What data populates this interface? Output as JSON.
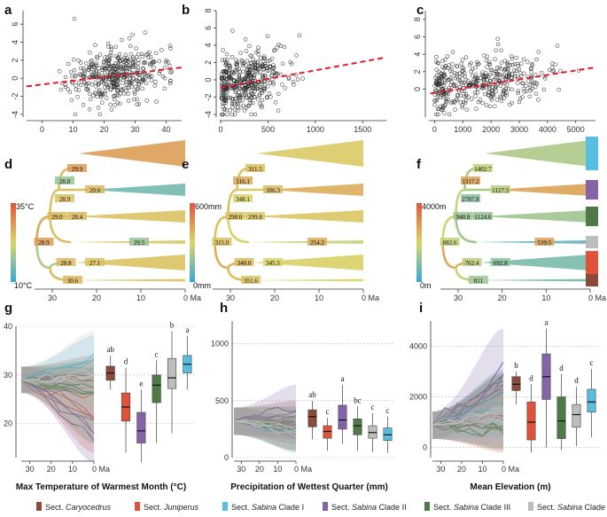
{
  "colors": {
    "Caryocedrus": "#8b4a3a",
    "Juniperus": "#e0533a",
    "SabinaI": "#56bfe0",
    "SabinaII": "#8463a8",
    "SabinaIII": "#4e7a48",
    "SabinaIV": "#bdbdbd",
    "trend": "#e8182a",
    "heat_low": "#3aa6d6",
    "heat_mid": "#d9d76a",
    "heat_high": "#e0553a"
  },
  "legend": [
    {
      "prefix": "Sect.",
      "italic": "Caryocedrus",
      "suffix": "",
      "color_key": "Caryocedrus"
    },
    {
      "prefix": "Sect.",
      "italic": "Juniperus",
      "suffix": "",
      "color_key": "Juniperus"
    },
    {
      "prefix": "Sect.",
      "italic": "Sabina",
      "suffix": "Clade I",
      "color_key": "SabinaI"
    },
    {
      "prefix": "Sect.",
      "italic": "Sabina",
      "suffix": "Clade II",
      "color_key": "SabinaII"
    },
    {
      "prefix": "Sect.",
      "italic": "Sabina",
      "suffix": "Clade III",
      "color_key": "SabinaIII"
    },
    {
      "prefix": "Sect.",
      "italic": "Sabina",
      "suffix": "Clade IV",
      "color_key": "SabinaIV"
    }
  ],
  "chart_data": [
    {
      "id": "a",
      "label": "a",
      "type": "scatter",
      "xlim": [
        -5,
        45
      ],
      "ylim": [
        -4.3,
        7.5
      ],
      "xticks": [
        "0",
        "10",
        "20",
        "30",
        "40"
      ],
      "xtick_values": [
        0,
        10,
        20,
        30,
        40
      ],
      "yticks": [
        "-4",
        "-2",
        "0",
        "2",
        "4",
        "6"
      ],
      "ytick_values": [
        -4,
        -2,
        0,
        2,
        4,
        6
      ],
      "trend": {
        "x0": -5,
        "y0": -0.9,
        "x1": 45,
        "y1": 1.2
      },
      "seed": 11,
      "n": 420,
      "xdist": {
        "mean": 24,
        "sd": 8,
        "min": -3,
        "max": 42
      },
      "yslope": 0.04,
      "yint": -0.6,
      "ysd": 1.4
    },
    {
      "id": "b",
      "label": "b",
      "type": "scatter",
      "xlim": [
        -10,
        1750
      ],
      "ylim": [
        -4.3,
        8.0
      ],
      "xticks": [
        "0",
        "500",
        "1000",
        "1500"
      ],
      "xtick_values": [
        0,
        500,
        1000,
        1500
      ],
      "yticks": [
        "-4",
        "-2",
        "0",
        "2",
        "4",
        "6",
        "8"
      ],
      "ytick_values": [
        -4,
        -2,
        0,
        2,
        4,
        6,
        8
      ],
      "trend": {
        "x0": 0,
        "y0": -0.9,
        "x1": 1750,
        "y1": 2.6
      },
      "seed": 23,
      "n": 420,
      "xdist": {
        "mean": 260,
        "sd": 220,
        "min": 5,
        "max": 1550
      },
      "yslope": 0.0018,
      "yint": -0.6,
      "ysd": 1.5
    },
    {
      "id": "c",
      "label": "c",
      "type": "scatter",
      "xlim": [
        -200,
        5700
      ],
      "ylim": [
        -3.2,
        9.0
      ],
      "xticks": [
        "0",
        "1000",
        "2000",
        "3000",
        "4000",
        "5000"
      ],
      "xtick_values": [
        0,
        1000,
        2000,
        3000,
        4000,
        5000
      ],
      "yticks": [
        "0",
        "2",
        "4",
        "6",
        "8"
      ],
      "ytick_values": [
        0,
        2,
        4,
        6,
        8
      ],
      "trend": {
        "x0": -150,
        "y0": -0.5,
        "x1": 5700,
        "y1": 2.5
      },
      "seed": 37,
      "n": 420,
      "xdist": {
        "mean": 1500,
        "sd": 1300,
        "min": 0,
        "max": 5400
      },
      "yslope": 0.0004,
      "yint": 0.0,
      "ysd": 1.4
    }
  ],
  "trees": [
    {
      "id": "d",
      "label": "d",
      "scale_top": "35°C",
      "scale_bottom": "10°C",
      "axis_ticks": [
        "30",
        "20",
        "10",
        "0 Ma"
      ],
      "node_values": [
        "29.9",
        "28.8",
        "20.6",
        "28.9",
        "29.0",
        "28.4",
        "28.9",
        "29.5",
        "28.8",
        "27.1",
        "30.6"
      ],
      "tips": [
        0.72,
        0.18,
        0.58,
        0.55,
        0.58,
        0.58
      ],
      "show_bars": false
    },
    {
      "id": "e",
      "label": "e",
      "scale_top": "600mm",
      "scale_bottom": "0mm",
      "axis_ticks": [
        "30",
        "20",
        "10",
        "0 Ma"
      ],
      "node_values": [
        "311.5",
        "316.1",
        "306.3",
        "348.1",
        "298.0",
        "299.8",
        "315.0",
        "254.2",
        "340.0",
        "345.5",
        "351.6"
      ],
      "tips": [
        0.55,
        0.66,
        0.57,
        0.45,
        0.53,
        0.5
      ],
      "show_bars": false
    },
    {
      "id": "f",
      "label": "f",
      "scale_top": "4000m",
      "scale_bottom": "0m",
      "axis_ticks": [
        "30",
        "20",
        "10",
        "0 Ma"
      ],
      "node_values": [
        "1402.7",
        "1317.2",
        "1127.5",
        "2787.8",
        "948.8",
        "1124.6",
        "882.6",
        "539.5",
        "762.4",
        "692.8",
        "811"
      ],
      "tips": [
        0.36,
        0.7,
        0.32,
        0.13,
        0.2,
        0.18
      ],
      "show_bars": true
    }
  ],
  "trait_panels": [
    {
      "id": "g",
      "label": "g",
      "xlabel": "Max Temperature of Warmest Month (°C)",
      "ylim": [
        13,
        40
      ],
      "yticks": [
        "20",
        "30",
        "40"
      ],
      "ytick_values": [
        20,
        30,
        40
      ],
      "time_ticks": [
        "30",
        "20",
        "10",
        "0 Ma"
      ],
      "root": 29,
      "boxes": [
        {
          "clade": "Caryocedrus",
          "sig": "ab",
          "min": 27,
          "q1": 28.9,
          "med": 30.4,
          "q3": 31.8,
          "max": 34
        },
        {
          "clade": "Juniperus",
          "sig": "d",
          "min": 14,
          "q1": 20.5,
          "med": 23.4,
          "q3": 26.3,
          "max": 31.5
        },
        {
          "clade": "SabinaII",
          "sig": "e",
          "min": 12,
          "q1": 16,
          "med": 18.5,
          "q3": 22.3,
          "max": 27
        },
        {
          "clade": "SabinaIII",
          "sig": "c",
          "min": 16,
          "q1": 24.3,
          "med": 27.9,
          "q3": 30,
          "max": 33
        },
        {
          "clade": "SabinaIV",
          "sig": "b",
          "min": 18,
          "q1": 27.2,
          "med": 29.4,
          "q3": 33.4,
          "max": 39
        },
        {
          "clade": "SabinaI",
          "sig": "a",
          "min": 27,
          "q1": 30.4,
          "med": 32.2,
          "q3": 34,
          "max": 38
        }
      ]
    },
    {
      "id": "h",
      "label": "h",
      "xlabel": "Precipitation of Wettest Quarter (mm)",
      "ylim": [
        0,
        1200
      ],
      "yticks": [
        "0",
        "500",
        "1000"
      ],
      "ytick_values": [
        0,
        500,
        1000
      ],
      "time_ticks": [
        "30",
        "20",
        "10",
        "0 Ma"
      ],
      "root": 320,
      "boxes": [
        {
          "clade": "Caryocedrus",
          "sig": "ab",
          "min": 160,
          "q1": 270,
          "med": 360,
          "q3": 420,
          "max": 500
        },
        {
          "clade": "Juniperus",
          "sig": "c",
          "min": 60,
          "q1": 170,
          "med": 230,
          "q3": 280,
          "max": 350
        },
        {
          "clade": "SabinaII",
          "sig": "a",
          "min": 120,
          "q1": 250,
          "med": 330,
          "q3": 460,
          "max": 640
        },
        {
          "clade": "SabinaIII",
          "sig": "bc",
          "min": 60,
          "q1": 200,
          "med": 280,
          "q3": 340,
          "max": 450
        },
        {
          "clade": "SabinaIV",
          "sig": "c",
          "min": 50,
          "q1": 170,
          "med": 220,
          "q3": 280,
          "max": 390
        },
        {
          "clade": "SabinaI",
          "sig": "c",
          "min": 40,
          "q1": 150,
          "med": 200,
          "q3": 260,
          "max": 360
        }
      ]
    },
    {
      "id": "i",
      "label": "i",
      "xlabel": "Mean Elevation (m)",
      "ylim": [
        -400,
        5000
      ],
      "yticks": [
        "0",
        "2000",
        "4000"
      ],
      "ytick_values": [
        0,
        2000,
        4000
      ],
      "time_ticks": [
        "30",
        "20",
        "10",
        "0 Ma"
      ],
      "root": 880,
      "boxes": [
        {
          "clade": "Caryocedrus",
          "sig": "b",
          "min": 1700,
          "q1": 2250,
          "med": 2500,
          "q3": 2800,
          "max": 3000
        },
        {
          "clade": "Juniperus",
          "sig": "d",
          "min": -200,
          "q1": 300,
          "med": 1000,
          "q3": 1800,
          "max": 2500
        },
        {
          "clade": "SabinaII",
          "sig": "a",
          "min": 0,
          "q1": 1900,
          "med": 2800,
          "q3": 3700,
          "max": 4700
        },
        {
          "clade": "SabinaIII",
          "sig": "d",
          "min": -100,
          "q1": 350,
          "med": 1050,
          "q3": 2000,
          "max": 2900
        },
        {
          "clade": "SabinaIV",
          "sig": "d",
          "min": 50,
          "q1": 800,
          "med": 1300,
          "q3": 1700,
          "max": 2400
        },
        {
          "clade": "SabinaI",
          "sig": "c",
          "min": 400,
          "q1": 1400,
          "med": 1800,
          "q3": 2300,
          "max": 3100
        }
      ]
    }
  ]
}
